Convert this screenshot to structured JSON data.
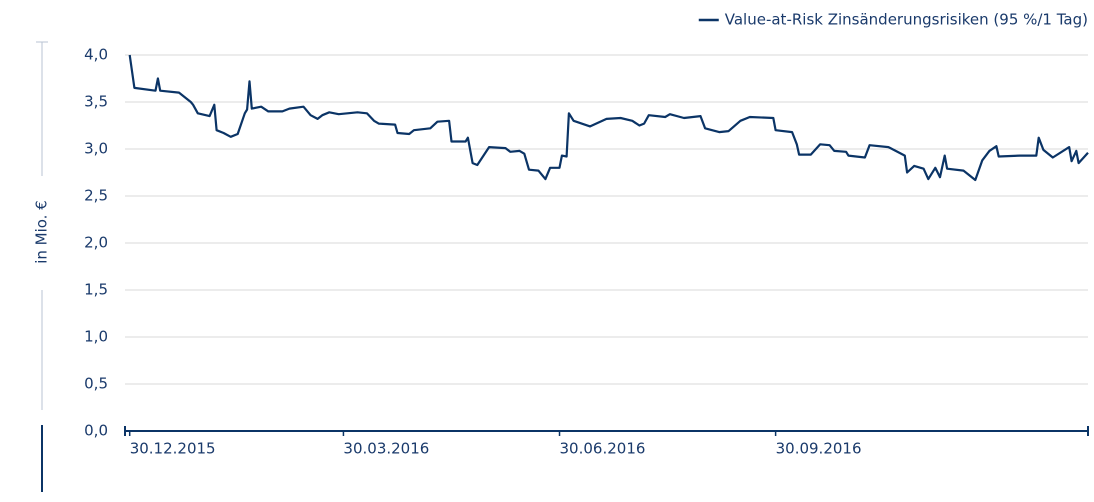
{
  "chart_data": {
    "type": "line",
    "y_label": "in Mio. €",
    "x": [
      "30.12.2015",
      "01.01.2016",
      "10.01.2016",
      "11.01.2016",
      "12.01.2016",
      "20.01.2016",
      "25.01.2016",
      "26.01.2016",
      "28.01.2016",
      "02.02.2016",
      "04.02.2016",
      "05.02.2016",
      "08.02.2016",
      "11.02.2016",
      "14.02.2016",
      "17.02.2016",
      "18.02.2016",
      "19.02.2016",
      "20.02.2016",
      "24.02.2016",
      "27.02.2016",
      "04.03.2016",
      "07.03.2016",
      "13.03.2016",
      "16.03.2016",
      "19.03.2016",
      "21.03.2016",
      "24.03.2016",
      "28.03.2016",
      "05.04.2016",
      "09.04.2016",
      "12.04.2016",
      "14.04.2016",
      "21.04.2016",
      "22.04.2016",
      "27.04.2016",
      "29.04.2016",
      "06.05.2016",
      "09.05.2016",
      "14.05.2016",
      "15.05.2016",
      "21.05.2016",
      "22.05.2016",
      "24.05.2016",
      "26.05.2016",
      "31.05.2016",
      "07.06.2016",
      "09.06.2016",
      "13.06.2016",
      "15.06.2016",
      "17.06.2016",
      "21.06.2016",
      "24.06.2016",
      "26.06.2016",
      "30.06.2016",
      "01.07.2016",
      "03.07.2016",
      "04.07.2016",
      "06.07.2016",
      "13.07.2016",
      "20.07.2016",
      "26.07.2016",
      "31.07.2016",
      "03.08.2016",
      "05.08.2016",
      "07.08.2016",
      "14.08.2016",
      "16.08.2016",
      "22.08.2016",
      "29.08.2016",
      "31.08.2016",
      "06.09.2016",
      "10.09.2016",
      "15.09.2016",
      "19.09.2016",
      "29.09.2016",
      "30.09.2016",
      "07.10.2016",
      "09.10.2016",
      "10.10.2016",
      "15.10.2016",
      "19.10.2016",
      "23.10.2016",
      "25.10.2016",
      "30.10.2016",
      "31.10.2016",
      "07.11.2016",
      "09.11.2016",
      "17.11.2016",
      "24.11.2016",
      "25.11.2016",
      "28.11.2016",
      "02.12.2016",
      "04.12.2016",
      "07.12.2016",
      "09.12.2016",
      "11.12.2016",
      "12.12.2016",
      "19.12.2016",
      "24.12.2016",
      "27.12.2016",
      "30.12.2016",
      "02.01.2017",
      "03.01.2017",
      "12.01.2017",
      "19.01.2017",
      "20.01.2017",
      "22.01.2017",
      "26.01.2017",
      "02.02.2017",
      "03.02.2017",
      "05.02.2017",
      "06.02.2017",
      "10.02.2017"
    ],
    "series": [
      {
        "name": "Value-at-Risk Zinsänderungsrisiken (95 %/1 Tag)",
        "color": "#0b3466",
        "values": [
          4.0,
          3.65,
          3.62,
          3.75,
          3.62,
          3.6,
          3.5,
          3.47,
          3.38,
          3.35,
          3.47,
          3.2,
          3.17,
          3.13,
          3.16,
          3.38,
          3.42,
          3.72,
          3.43,
          3.45,
          3.4,
          3.4,
          3.43,
          3.45,
          3.36,
          3.32,
          3.36,
          3.39,
          3.37,
          3.39,
          3.38,
          3.3,
          3.27,
          3.26,
          3.17,
          3.16,
          3.2,
          3.22,
          3.29,
          3.3,
          3.08,
          3.08,
          3.12,
          2.85,
          2.83,
          3.02,
          3.01,
          2.97,
          2.98,
          2.95,
          2.78,
          2.77,
          2.68,
          2.8,
          2.8,
          2.93,
          2.92,
          3.38,
          3.3,
          3.24,
          3.32,
          3.33,
          3.3,
          3.25,
          3.27,
          3.36,
          3.34,
          3.37,
          3.33,
          3.35,
          3.22,
          3.18,
          3.19,
          3.3,
          3.34,
          3.33,
          3.2,
          3.18,
          3.05,
          2.94,
          2.94,
          3.05,
          3.04,
          2.98,
          2.97,
          2.93,
          2.91,
          3.04,
          3.02,
          2.93,
          2.75,
          2.82,
          2.79,
          2.68,
          2.8,
          2.7,
          2.93,
          2.79,
          2.77,
          2.67,
          2.88,
          2.98,
          3.03,
          2.92,
          2.93,
          2.93,
          3.12,
          2.99,
          2.91,
          3.02,
          2.87,
          2.98,
          2.85,
          2.96
        ]
      }
    ],
    "xlim": [
      "28.12.2015",
      "10.02.2017"
    ],
    "xticks": [
      "30.12.2015",
      "30.03.2016",
      "30.06.2016",
      "30.09.2016"
    ],
    "ylim": [
      0,
      4
    ],
    "yticks": [
      {
        "value": 0,
        "label": "0,0"
      },
      {
        "value": 0.5,
        "label": "0,5"
      },
      {
        "value": 1,
        "label": "1,0"
      },
      {
        "value": 1.5,
        "label": "1,5"
      },
      {
        "value": 2,
        "label": "2,0"
      },
      {
        "value": 2.5,
        "label": "2,5"
      },
      {
        "value": 3,
        "label": "3,0"
      },
      {
        "value": 3.5,
        "label": "3,5"
      },
      {
        "value": 4,
        "label": "4,0"
      }
    ],
    "grid": true,
    "legend": "top-right"
  }
}
